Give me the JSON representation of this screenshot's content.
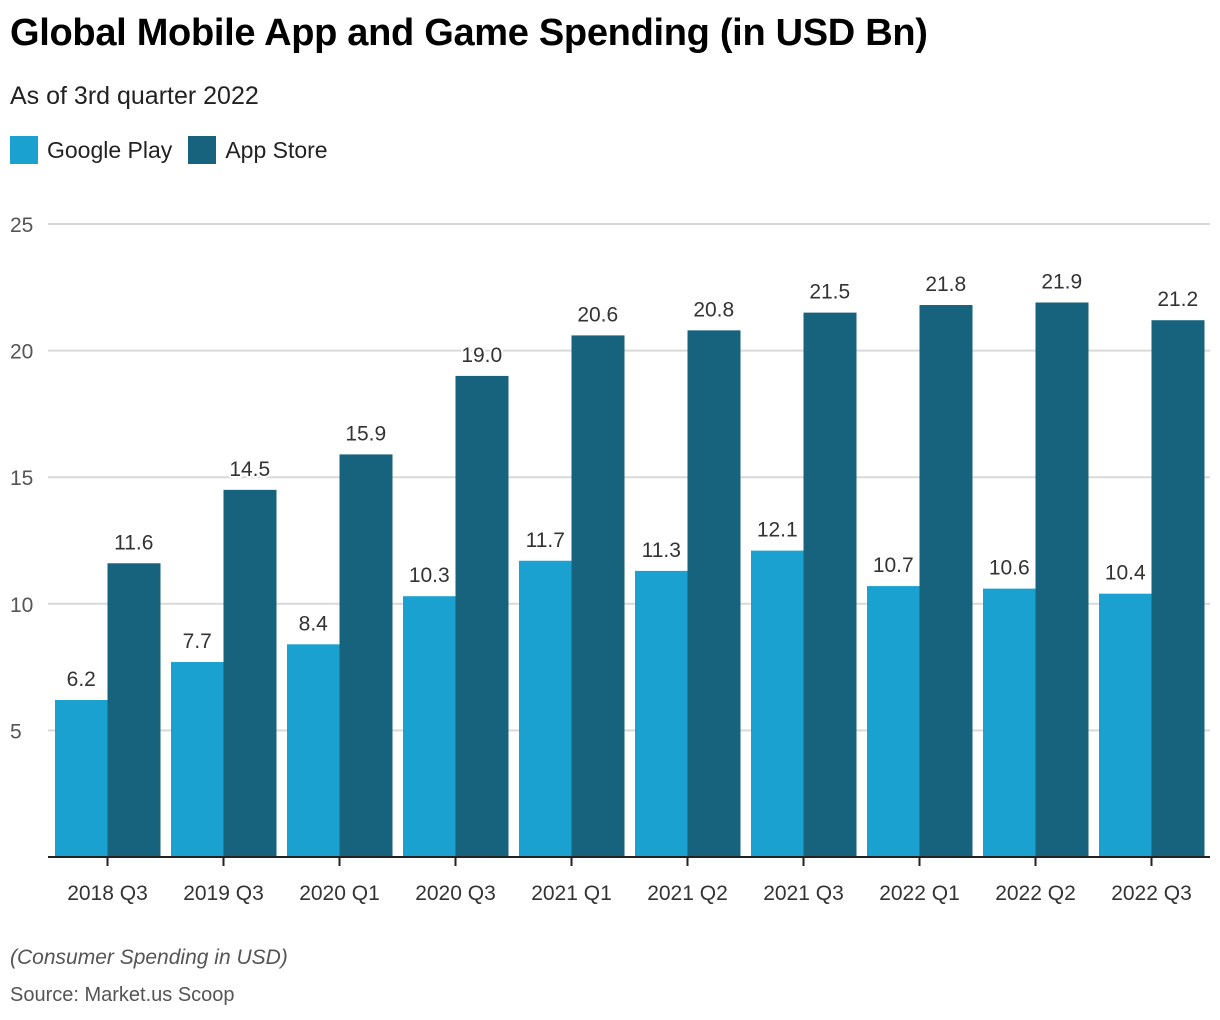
{
  "colors": {
    "google_play": "#1ba1cf",
    "app_store": "#17627c",
    "gridline": "#d9d9d9",
    "axis": "#222222"
  },
  "chart_data": {
    "type": "bar",
    "title": "Global Mobile App and Game Spending (in USD Bn)",
    "subtitle": "As of 3rd quarter 2022",
    "xlabel": "",
    "ylabel": "",
    "ylim": [
      0,
      25
    ],
    "yticks": [
      5,
      10,
      15,
      20,
      25
    ],
    "grid": true,
    "legend_position": "top-left",
    "categories": [
      "2018 Q3",
      "2019 Q3",
      "2020 Q1",
      "2020 Q3",
      "2021 Q1",
      "2021 Q2",
      "2021 Q3",
      "2022 Q1",
      "2022 Q2",
      "2022 Q3"
    ],
    "series": [
      {
        "name": "Google Play",
        "color": "#1ba1cf",
        "values": [
          6.2,
          7.7,
          8.4,
          10.3,
          11.7,
          11.3,
          12.1,
          10.7,
          10.6,
          10.4
        ]
      },
      {
        "name": "App Store",
        "color": "#17627c",
        "values": [
          11.6,
          14.5,
          15.9,
          19.0,
          20.6,
          20.8,
          21.5,
          21.8,
          21.9,
          21.2
        ]
      }
    ],
    "note": "(Consumer Spending in USD)",
    "source": "Source: Market.us Scoop"
  }
}
